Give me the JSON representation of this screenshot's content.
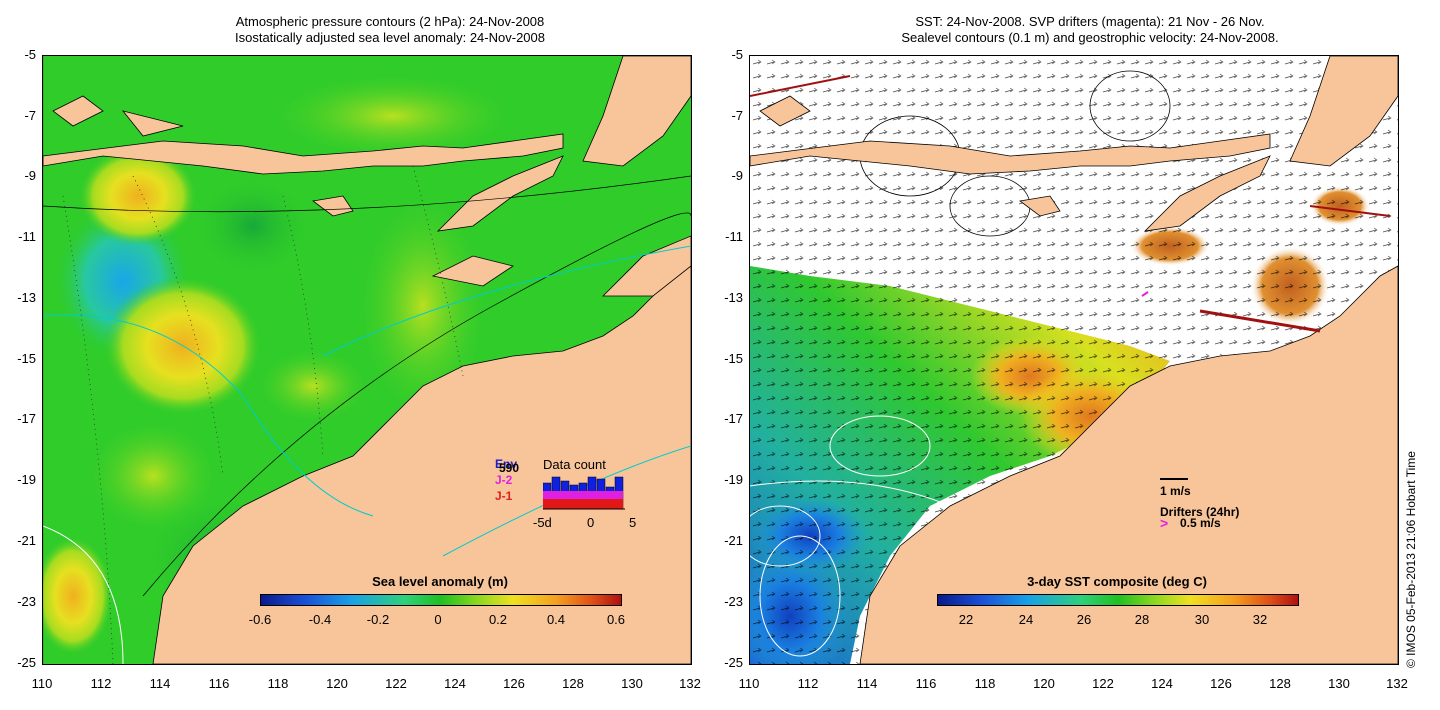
{
  "left_panel": {
    "title_line1": "Atmospheric pressure contours (2 hPa): 24-Nov-2008",
    "title_line2": "Isostatically adjusted sea level anomaly: 24-Nov-2008",
    "colorbar_title": "Sea level anomaly (m)",
    "colorbar_ticks": [
      "-0.6",
      "-0.4",
      "-0.2",
      "0",
      "0.2",
      "0.4",
      "0.6"
    ],
    "inset": {
      "title": "Data count",
      "labels": [
        "Env",
        "J-2",
        "J-1"
      ],
      "count": "590",
      "x_ticks": [
        "-5d",
        "0",
        "5"
      ],
      "label_colors": [
        "#2020c0",
        "#e020e0",
        "#e02020"
      ]
    }
  },
  "right_panel": {
    "title_line1": "SST: 24-Nov-2008. SVP drifters (magenta): 21 Nov - 26 Nov.",
    "title_line2": "Sealevel contours (0.1 m) and geostrophic velocity: 24-Nov-2008.",
    "colorbar_title": "3-day SST composite (deg C)",
    "colorbar_ticks": [
      "22",
      "24",
      "26",
      "28",
      "30",
      "32"
    ],
    "velocity_scale_label": "1 m/s",
    "drifters_label": "Drifters (24hr)",
    "drifter_symbol": ">",
    "drifter_speed_label": "0.5 m/s"
  },
  "y_ticks": [
    "-5",
    "-7",
    "-9",
    "-11",
    "-13",
    "-15",
    "-17",
    "-19",
    "-21",
    "-23",
    "-25"
  ],
  "x_ticks": [
    "110",
    "112",
    "114",
    "116",
    "118",
    "120",
    "122",
    "124",
    "126",
    "128",
    "130",
    "132"
  ],
  "stamp": "© IMOS 05-Feb-2013 21:06 Hobart Time",
  "colors": {
    "land": "#f8c59a",
    "ocean_base": "#2fcc2a",
    "magenta": "#e020e0",
    "drifter_red": "#a01010"
  }
}
